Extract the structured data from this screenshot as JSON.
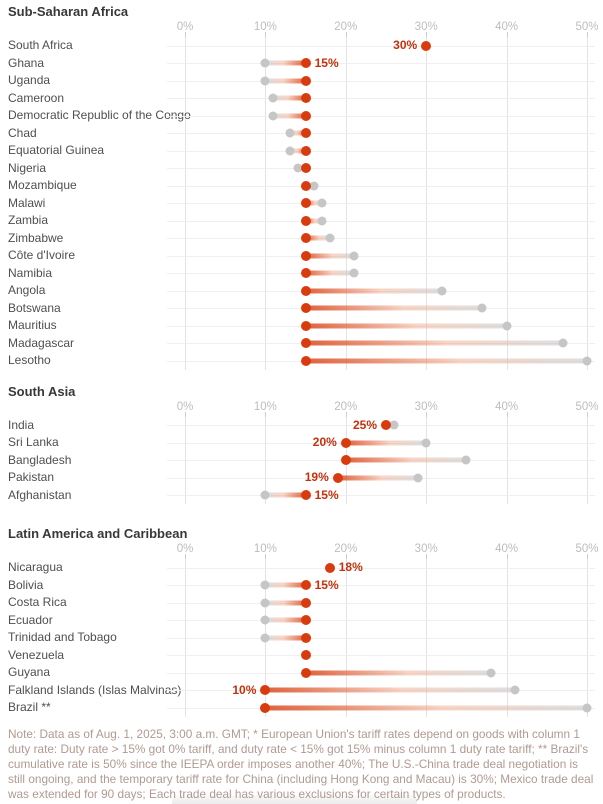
{
  "colors": {
    "new_rate_dot": "#d83c0e",
    "old_rate_dot": "#c6c6c6",
    "value_label": "#c5300d",
    "axis_label": "#bdbdbd",
    "gridline": "#e3e3e3",
    "country_label": "#4f4f4f",
    "section_header": "#383838",
    "note_text": "#b09a91"
  },
  "chart_data": [
    {
      "type": "dumbbell",
      "title": "Sub-Saharan Africa",
      "xlim": [
        0,
        50
      ],
      "tick_labels": [
        "0%",
        "10%",
        "20%",
        "30%",
        "40%",
        "50%"
      ],
      "grid": true,
      "series_meaning": {
        "new_pct": "current tariff rate (red)",
        "old_pct": "previous tariff rate (gray)"
      },
      "rows": [
        {
          "country": "South Africa",
          "new_pct": 30,
          "old_pct": null,
          "label": "30%",
          "label_side": "left"
        },
        {
          "country": "Ghana",
          "new_pct": 15,
          "old_pct": 10,
          "label": "15%",
          "label_side": "right"
        },
        {
          "country": "Uganda",
          "new_pct": 15,
          "old_pct": 10,
          "label": null
        },
        {
          "country": "Cameroon",
          "new_pct": 15,
          "old_pct": 11,
          "label": null
        },
        {
          "country": "Democratic Republic of the Congo",
          "new_pct": 15,
          "old_pct": 11,
          "label": null
        },
        {
          "country": "Chad",
          "new_pct": 15,
          "old_pct": 13,
          "label": null
        },
        {
          "country": "Equatorial Guinea",
          "new_pct": 15,
          "old_pct": 13,
          "label": null
        },
        {
          "country": "Nigeria",
          "new_pct": 15,
          "old_pct": 14,
          "label": null
        },
        {
          "country": "Mozambique",
          "new_pct": 15,
          "old_pct": 16,
          "label": null
        },
        {
          "country": "Malawi",
          "new_pct": 15,
          "old_pct": 17,
          "label": null
        },
        {
          "country": "Zambia",
          "new_pct": 15,
          "old_pct": 17,
          "label": null
        },
        {
          "country": "Zimbabwe",
          "new_pct": 15,
          "old_pct": 18,
          "label": null
        },
        {
          "country": "Côte d'Ivoire",
          "new_pct": 15,
          "old_pct": 21,
          "label": null
        },
        {
          "country": "Namibia",
          "new_pct": 15,
          "old_pct": 21,
          "label": null
        },
        {
          "country": "Angola",
          "new_pct": 15,
          "old_pct": 32,
          "label": null
        },
        {
          "country": "Botswana",
          "new_pct": 15,
          "old_pct": 37,
          "label": null
        },
        {
          "country": "Mauritius",
          "new_pct": 15,
          "old_pct": 40,
          "label": null
        },
        {
          "country": "Madagascar",
          "new_pct": 15,
          "old_pct": 47,
          "label": null
        },
        {
          "country": "Lesotho",
          "new_pct": 15,
          "old_pct": 50,
          "label": null
        }
      ]
    },
    {
      "type": "dumbbell",
      "title": "South Asia",
      "xlim": [
        0,
        50
      ],
      "tick_labels": [
        "0%",
        "10%",
        "20%",
        "30%",
        "40%",
        "50%"
      ],
      "grid": true,
      "rows": [
        {
          "country": "India",
          "new_pct": 25,
          "old_pct": 26,
          "label": "25%",
          "label_side": "left"
        },
        {
          "country": "Sri Lanka",
          "new_pct": 20,
          "old_pct": 30,
          "label": "20%",
          "label_side": "left"
        },
        {
          "country": "Bangladesh",
          "new_pct": 20,
          "old_pct": 35,
          "label": null
        },
        {
          "country": "Pakistan",
          "new_pct": 19,
          "old_pct": 29,
          "label": "19%",
          "label_side": "left"
        },
        {
          "country": "Afghanistan",
          "new_pct": 15,
          "old_pct": 10,
          "label": "15%",
          "label_side": "right"
        }
      ]
    },
    {
      "type": "dumbbell",
      "title": "Latin America and Caribbean",
      "xlim": [
        0,
        50
      ],
      "tick_labels": [
        "0%",
        "10%",
        "20%",
        "30%",
        "40%",
        "50%"
      ],
      "grid": true,
      "rows": [
        {
          "country": "Nicaragua",
          "new_pct": 18,
          "old_pct": null,
          "label": "18%",
          "label_side": "right"
        },
        {
          "country": "Bolivia",
          "new_pct": 15,
          "old_pct": 10,
          "label": "15%",
          "label_side": "right"
        },
        {
          "country": "Costa Rica",
          "new_pct": 15,
          "old_pct": 10,
          "label": null
        },
        {
          "country": "Ecuador",
          "new_pct": 15,
          "old_pct": 10,
          "label": null
        },
        {
          "country": "Trinidad and Tobago",
          "new_pct": 15,
          "old_pct": 10,
          "label": null
        },
        {
          "country": "Venezuela",
          "new_pct": 15,
          "old_pct": null,
          "label": null
        },
        {
          "country": "Guyana",
          "new_pct": 15,
          "old_pct": 38,
          "label": null
        },
        {
          "country": "Falkland Islands (Islas Malvinas)",
          "new_pct": 10,
          "old_pct": 41,
          "label": "10%",
          "label_side": "left"
        },
        {
          "country": "Brazil **",
          "new_pct": 10,
          "old_pct": 50,
          "label": null
        }
      ]
    }
  ],
  "note": "Note: Data as of Aug. 1, 2025, 3:00 a.m. GMT; * European Union's tariff rates depend on goods with column 1 duty rate: Duty rate > 15% got 0% tariff, and duty rate < 15% got 15% minus column 1 duty rate tariff; ** Brazil's cumulative rate is 50% since the IEEPA order imposes another 40%; The U.S.-China trade deal negotiation is still ongoing, and the temporary tariff rate for China (including Hong Kong and Macau) is 30%; Mexico trade deal was extended for 90 days; Each trade deal has various exclusions for certain types of products."
}
